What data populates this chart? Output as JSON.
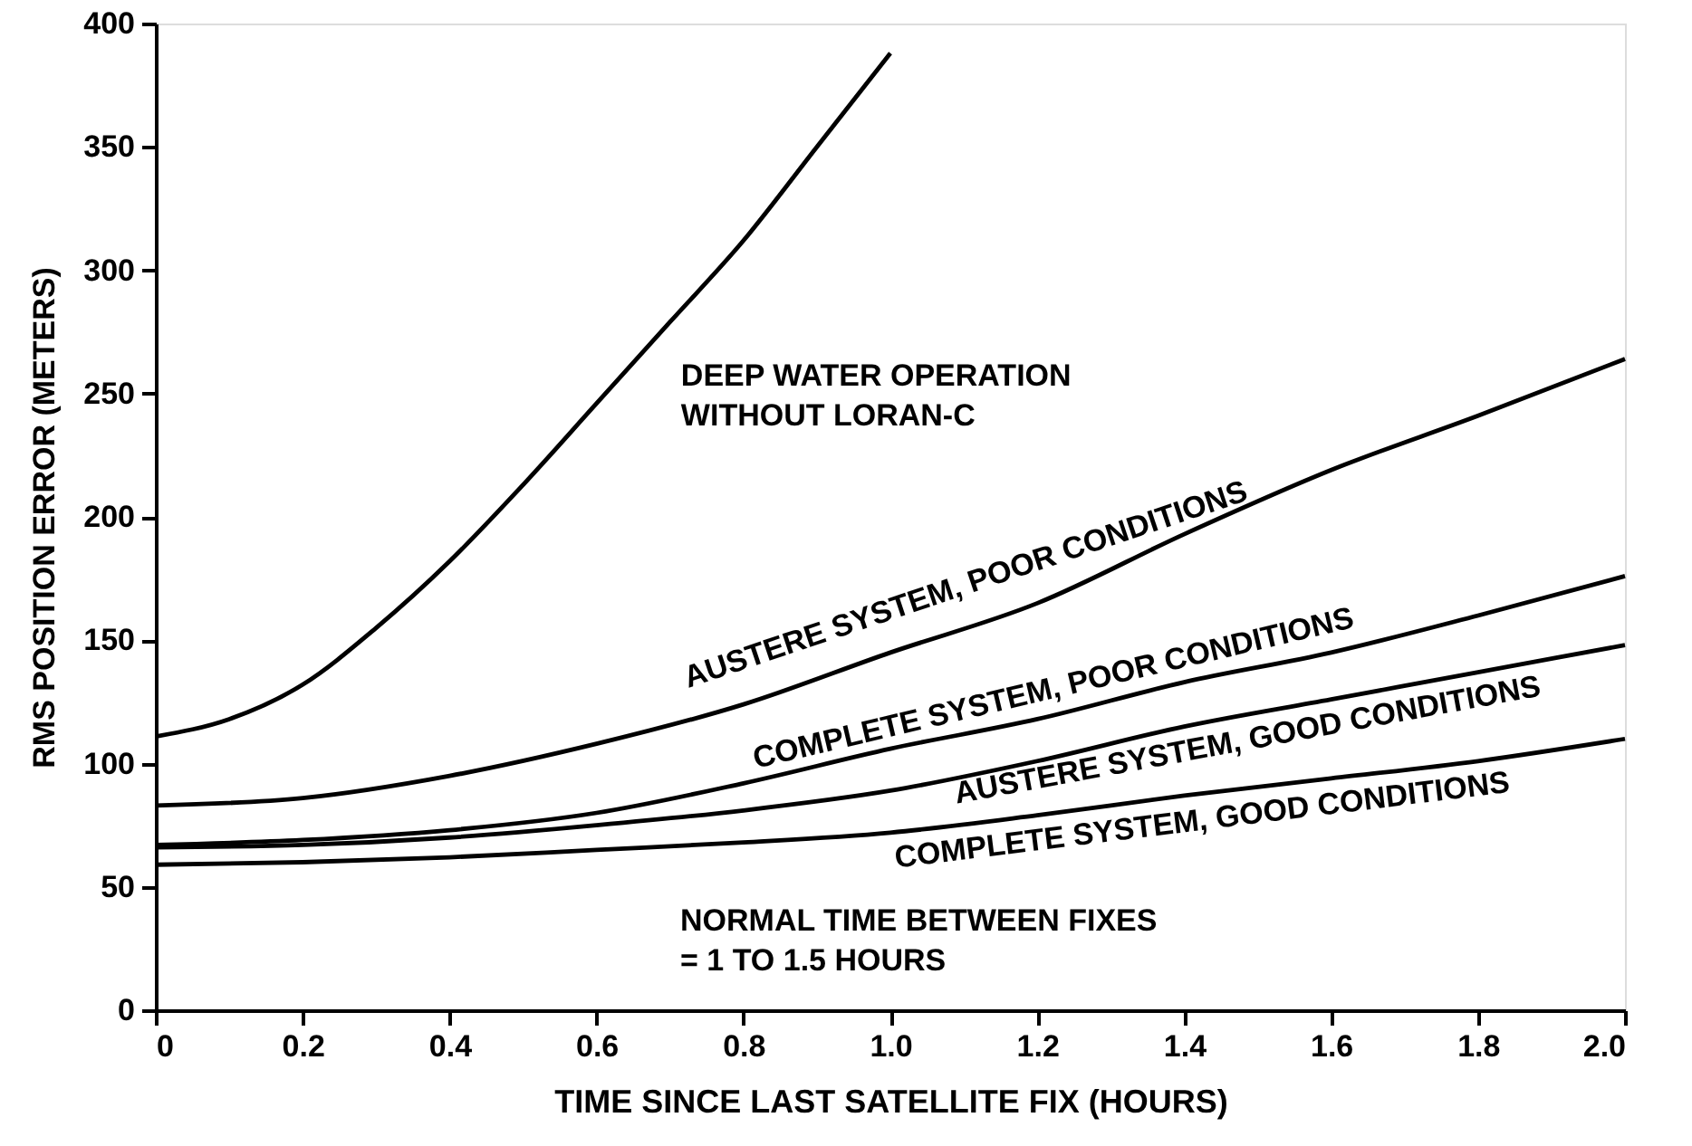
{
  "chart_data": {
    "type": "line",
    "xlabel": "TIME SINCE LAST SATELLITE FIX (HOURS)",
    "ylabel": "RMS POSITION ERROR (METERS)",
    "xlim": [
      0,
      2.0
    ],
    "ylim": [
      0,
      400
    ],
    "xticks": [
      0,
      0.2,
      0.4,
      0.6,
      0.8,
      {
        "value": 1,
        "label": "1.0"
      },
      1.2,
      1.4,
      1.6,
      1.8,
      {
        "value": 2,
        "label": "2.0"
      }
    ],
    "yticks": [
      0,
      50,
      100,
      150,
      200,
      250,
      300,
      350,
      400
    ],
    "grid": false,
    "marker": "none",
    "line_style": "solid",
    "series": [
      {
        "name": "DEEP WATER OPERATION\nWITHOUT LORAN-C",
        "color": "#000000",
        "x": [
          0,
          0.1,
          0.2,
          0.3,
          0.4,
          0.5,
          0.6,
          0.7,
          0.8,
          0.9,
          1.0
        ],
        "values": [
          111,
          118,
          132,
          155,
          182,
          213,
          246,
          279,
          312,
          350,
          388
        ]
      },
      {
        "name": "AUSTERE SYSTEM, POOR CONDITIONS",
        "color": "#000000",
        "x": [
          0,
          0.2,
          0.4,
          0.6,
          0.8,
          1.0,
          1.2,
          1.4,
          1.6,
          1.8,
          2.0
        ],
        "values": [
          83,
          86,
          95,
          108,
          124,
          145,
          165,
          193,
          219,
          241,
          264
        ]
      },
      {
        "name": "COMPLETE SYSTEM, POOR CONDITIONS",
        "color": "#000000",
        "x": [
          0,
          0.2,
          0.4,
          0.6,
          0.8,
          1.0,
          1.2,
          1.4,
          1.6,
          1.8,
          2.0
        ],
        "values": [
          67,
          69,
          73,
          80,
          92,
          106,
          118,
          133,
          145,
          160,
          176
        ]
      },
      {
        "name": "AUSTERE SYSTEM, GOOD CONDITIONS",
        "color": "#000000",
        "x": [
          0,
          0.2,
          0.4,
          0.6,
          0.8,
          1.0,
          1.2,
          1.4,
          1.6,
          1.8,
          2.0
        ],
        "values": [
          66,
          67,
          70,
          75,
          81,
          89,
          101,
          115,
          126,
          137,
          148
        ]
      },
      {
        "name": "COMPLETE SYSTEM, GOOD CONDITIONS",
        "color": "#000000",
        "x": [
          0,
          0.2,
          0.4,
          0.6,
          0.8,
          1.0,
          1.2,
          1.4,
          1.6,
          1.8,
          2.0
        ],
        "values": [
          59,
          60,
          62,
          65,
          68,
          72,
          79,
          87,
          94,
          101,
          110
        ]
      }
    ],
    "annotations": [
      "NORMAL TIME BETWEEN FIXES\n= 1 TO 1.5 HOURS"
    ]
  }
}
